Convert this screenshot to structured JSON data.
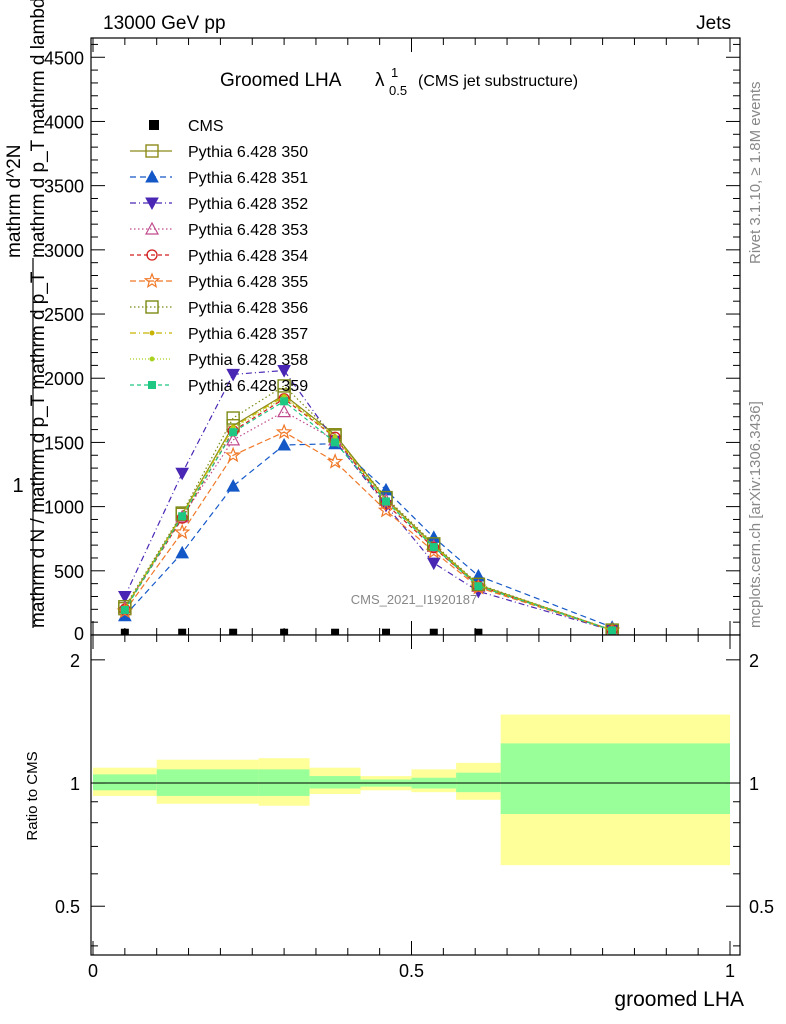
{
  "header": {
    "left": "13000 GeV pp",
    "right": "Jets"
  },
  "side_labels": {
    "rivet": "Rivet 3.1.10, ≥ 1.8M events",
    "mcplots": "mcplots.cern.ch [arXiv:1306.3436]"
  },
  "chart_data": {
    "type": "line",
    "title_main": "Groomed LHA",
    "title_symbol": "λ",
    "title_sup": "1",
    "title_sub": "0.5",
    "title_note": "(CMS jet substructure)",
    "watermark": "CMS_2021_I1920187",
    "xlabel": "groomed LHA",
    "ylabel_numerator": "1",
    "ylabel_lines": [
      "mathrm d N / mathrm d p_T mathrm d p_T",
      "mathrm d^2N",
      "mathrm d p_T mathrm d lambda"
    ],
    "ratio_ylabel": "Ratio to CMS",
    "xlim": [
      0,
      1
    ],
    "ylim": [
      0,
      4650
    ],
    "ratio_ylim": [
      0.38,
      2.3
    ],
    "x_ticks": [
      {
        "v": 0,
        "label": "0"
      },
      {
        "v": 0.5,
        "label": "0.5"
      },
      {
        "v": 1,
        "label": "1"
      }
    ],
    "y_ticks": [
      {
        "v": 500,
        "label": "500"
      },
      {
        "v": 1000,
        "label": "1000"
      },
      {
        "v": 1500,
        "label": "1500"
      },
      {
        "v": 2000,
        "label": "2000"
      },
      {
        "v": 2500,
        "label": "2500"
      },
      {
        "v": 3000,
        "label": "3000"
      },
      {
        "v": 3500,
        "label": "3500"
      },
      {
        "v": 4000,
        "label": "4000"
      },
      {
        "v": 4500,
        "label": "4500"
      }
    ],
    "y_bottom_label": "0",
    "ratio_ticks": [
      {
        "v": 0.5,
        "label": "0.5"
      },
      {
        "v": 1,
        "label": "1"
      },
      {
        "v": 2,
        "label": "2"
      }
    ],
    "x": [
      0.05,
      0.14,
      0.22,
      0.3,
      0.38,
      0.46,
      0.535,
      0.605,
      0.815
    ],
    "data_series": {
      "name": "CMS",
      "values": [
        10,
        10,
        10,
        10,
        10,
        10,
        10,
        10,
        10
      ],
      "color": "#000000"
    },
    "series": [
      {
        "name": "Pythia 6.428 350",
        "color": "#8b8b1a",
        "dash": "none",
        "marker": "square-open",
        "values": [
          205,
          940,
          1630,
          1870,
          1560,
          1060,
          700,
          390,
          38
        ]
      },
      {
        "name": "Pythia 6.428 351",
        "color": "#1458c8",
        "dash": "6,4",
        "marker": "triangle-up",
        "values": [
          150,
          640,
          1160,
          1480,
          1490,
          1130,
          760,
          460,
          60
        ]
      },
      {
        "name": "Pythia 6.428 352",
        "color": "#4a26b4",
        "dash": "6,3,1,3",
        "marker": "triangle-down",
        "values": [
          300,
          1260,
          2030,
          2060,
          1510,
          1010,
          560,
          340,
          35
        ]
      },
      {
        "name": "Pythia 6.428 353",
        "color": "#c04a8c",
        "dash": "1.5,2.5",
        "marker": "triangle-open",
        "values": [
          210,
          920,
          1520,
          1740,
          1520,
          1050,
          690,
          380,
          38
        ]
      },
      {
        "name": "Pythia 6.428 354",
        "color": "#d21e1e",
        "dash": "4,3",
        "marker": "circle-open",
        "values": [
          200,
          910,
          1590,
          1840,
          1540,
          1020,
          680,
          380,
          37
        ]
      },
      {
        "name": "Pythia 6.428 355",
        "color": "#f07828",
        "dash": "6,3",
        "marker": "star-open",
        "values": [
          185,
          800,
          1400,
          1580,
          1350,
          970,
          650,
          370,
          36
        ]
      },
      {
        "name": "Pythia 6.428 356",
        "color": "#7c8a14",
        "dash": "1.5,2.5",
        "marker": "square-open",
        "values": [
          220,
          950,
          1690,
          1940,
          1550,
          1070,
          710,
          395,
          38
        ]
      },
      {
        "name": "Pythia 6.428 357",
        "color": "#c8b400",
        "dash": "6,3,1,3",
        "marker": "dot",
        "values": [
          205,
          935,
          1620,
          1860,
          1545,
          1050,
          695,
          385,
          37
        ]
      },
      {
        "name": "Pythia 6.428 358",
        "color": "#a8d21e",
        "dash": "1,2",
        "marker": "dot",
        "values": [
          200,
          930,
          1610,
          1850,
          1540,
          1045,
          690,
          385,
          37
        ]
      },
      {
        "name": "Pythia 6.428 359",
        "color": "#1ec882",
        "dash": "4,3",
        "marker": "square-filled",
        "values": [
          195,
          925,
          1580,
          1820,
          1500,
          1040,
          685,
          380,
          36
        ]
      }
    ],
    "ratio_bands": [
      {
        "x0": 0.0,
        "x1": 0.1,
        "yellow": [
          0.93,
          1.09
        ],
        "green": [
          0.96,
          1.05
        ]
      },
      {
        "x0": 0.1,
        "x1": 0.26,
        "yellow": [
          0.89,
          1.14
        ],
        "green": [
          0.93,
          1.08
        ]
      },
      {
        "x0": 0.26,
        "x1": 0.34,
        "yellow": [
          0.88,
          1.15
        ],
        "green": [
          0.93,
          1.08
        ]
      },
      {
        "x0": 0.34,
        "x1": 0.42,
        "yellow": [
          0.94,
          1.09
        ],
        "green": [
          0.97,
          1.04
        ]
      },
      {
        "x0": 0.42,
        "x1": 0.5,
        "yellow": [
          0.96,
          1.04
        ],
        "green": [
          0.98,
          1.02
        ]
      },
      {
        "x0": 0.5,
        "x1": 0.57,
        "yellow": [
          0.95,
          1.08
        ],
        "green": [
          0.97,
          1.03
        ]
      },
      {
        "x0": 0.57,
        "x1": 0.64,
        "yellow": [
          0.91,
          1.12
        ],
        "green": [
          0.95,
          1.06
        ]
      },
      {
        "x0": 0.64,
        "x1": 1.0,
        "yellow": [
          0.63,
          1.47
        ],
        "green": [
          0.84,
          1.25
        ]
      }
    ],
    "band_colors": {
      "yellow": "#ffff99",
      "green": "#99ff99"
    }
  }
}
